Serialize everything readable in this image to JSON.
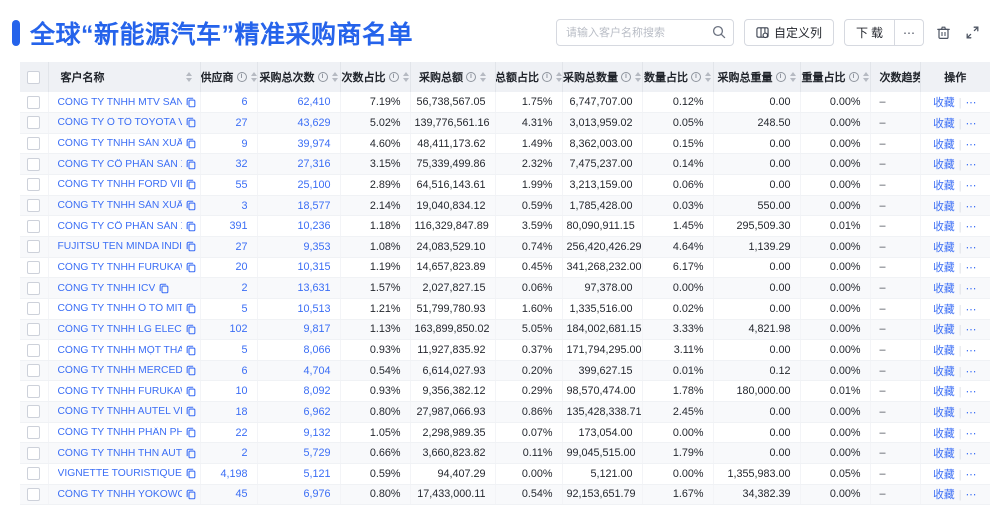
{
  "page": {
    "title": "全球“新能源汽车”精准采购商名单"
  },
  "colors": {
    "accent": "#2563eb",
    "link": "#3b6ef5",
    "header_bg": "#eff1f5"
  },
  "toolbar": {
    "search_placeholder": "请输入客户名称搜索",
    "customize_columns_label": "自定义列",
    "download_label": "下载",
    "download_more_label": "⋯",
    "icons": [
      "search-icon",
      "columns-settings-icon",
      "trash-icon",
      "expand-icon"
    ]
  },
  "table": {
    "columns": [
      {
        "key": "checkbox",
        "label": ""
      },
      {
        "key": "name",
        "label": "客户名称",
        "info": false,
        "sort": true
      },
      {
        "key": "supplier",
        "label": "供应商",
        "info": true,
        "sort": true
      },
      {
        "key": "count",
        "label": "采购总次数",
        "info": true,
        "sort": true
      },
      {
        "key": "count_pct",
        "label": "次数占比",
        "info": true,
        "sort": true
      },
      {
        "key": "amount",
        "label": "采购总额",
        "info": true,
        "sort": true
      },
      {
        "key": "amount_pct",
        "label": "总额占比",
        "info": true,
        "sort": true
      },
      {
        "key": "qty",
        "label": "采购总数量",
        "info": true,
        "sort": true
      },
      {
        "key": "qty_pct",
        "label": "数量占比",
        "info": true,
        "sort": true
      },
      {
        "key": "weight",
        "label": "采购总重量",
        "info": true,
        "sort": true
      },
      {
        "key": "weight_pct",
        "label": "重量占比",
        "info": true,
        "sort": true
      },
      {
        "key": "trend",
        "label": "次数趋势",
        "info": true,
        "sort": true
      },
      {
        "key": "actions",
        "label": "操作"
      }
    ],
    "actions": {
      "favorite": "收藏",
      "divider": "|",
      "more": "⋯"
    },
    "rows": [
      {
        "name": "CÔNG TY TNHH MTV SẢN XUẤ...",
        "supplier": "6",
        "count": "62,410",
        "count_pct": "7.19%",
        "amount": "56,738,567.05",
        "amount_pct": "1.75%",
        "qty": "6,747,707.00",
        "qty_pct": "0.12%",
        "weight": "0.00",
        "weight_pct": "0.00%",
        "trend": "–"
      },
      {
        "name": "CÔNG TY Ô TÔ TOYOTA VIỆT ...",
        "supplier": "27",
        "count": "43,629",
        "count_pct": "5.02%",
        "amount": "139,776,561.16",
        "amount_pct": "4.31%",
        "qty": "3,013,959.02",
        "qty_pct": "0.05%",
        "weight": "248.50",
        "weight_pct": "0.00%",
        "trend": "–"
      },
      {
        "name": "CÔNG TY TNHH SẢN XUẤT VÀ ...",
        "supplier": "9",
        "count": "39,974",
        "count_pct": "4.60%",
        "amount": "48,411,173.62",
        "amount_pct": "1.49%",
        "qty": "8,362,003.00",
        "qty_pct": "0.15%",
        "weight": "0.00",
        "weight_pct": "0.00%",
        "trend": "–"
      },
      {
        "name": "CÔNG TY CỔ PHẦN SẢN XUẤT...",
        "supplier": "32",
        "count": "27,316",
        "count_pct": "3.15%",
        "amount": "75,339,499.86",
        "amount_pct": "2.32%",
        "qty": "7,475,237.00",
        "qty_pct": "0.14%",
        "weight": "0.00",
        "weight_pct": "0.00%",
        "trend": "–"
      },
      {
        "name": "CÔNG TY TNHH FORD VIỆT NAM",
        "supplier": "55",
        "count": "25,100",
        "count_pct": "2.89%",
        "amount": "64,516,143.61",
        "amount_pct": "1.99%",
        "qty": "3,213,159.00",
        "qty_pct": "0.06%",
        "weight": "0.00",
        "weight_pct": "0.00%",
        "trend": "–"
      },
      {
        "name": "CÔNG TY TNHH SẢN XUẤT VÀ ...",
        "supplier": "3",
        "count": "18,577",
        "count_pct": "2.14%",
        "amount": "19,040,834.12",
        "amount_pct": "0.59%",
        "qty": "1,785,428.00",
        "qty_pct": "0.03%",
        "weight": "550.00",
        "weight_pct": "0.00%",
        "trend": "–"
      },
      {
        "name": "CÔNG TY CỔ PHẦN SẢN XUẤT...",
        "supplier": "391",
        "count": "10,236",
        "count_pct": "1.18%",
        "amount": "116,329,847.89",
        "amount_pct": "3.59%",
        "qty": "80,090,911.15",
        "qty_pct": "1.45%",
        "weight": "295,509.30",
        "weight_pct": "0.01%",
        "trend": "–"
      },
      {
        "name": "FUJITSU TEN MINDA INDIA PVT...",
        "supplier": "27",
        "count": "9,353",
        "count_pct": "1.08%",
        "amount": "24,083,529.10",
        "amount_pct": "0.74%",
        "qty": "256,420,426.29",
        "qty_pct": "4.64%",
        "weight": "1,139.29",
        "weight_pct": "0.00%",
        "trend": "–"
      },
      {
        "name": "CÔNG TY TNHH FURUKAWA A...",
        "supplier": "20",
        "count": "10,315",
        "count_pct": "1.19%",
        "amount": "14,657,823.89",
        "amount_pct": "0.45%",
        "qty": "341,268,232.00",
        "qty_pct": "6.17%",
        "weight": "0.00",
        "weight_pct": "0.00%",
        "trend": "–"
      },
      {
        "name": "CÔNG TY TNHH ICV",
        "supplier": "2",
        "count": "13,631",
        "count_pct": "1.57%",
        "amount": "2,027,827.15",
        "amount_pct": "0.06%",
        "qty": "97,378.00",
        "qty_pct": "0.00%",
        "weight": "0.00",
        "weight_pct": "0.00%",
        "trend": "–"
      },
      {
        "name": "CÔNG TY TNHH Ô TÔ MITSUBI...",
        "supplier": "5",
        "count": "10,513",
        "count_pct": "1.21%",
        "amount": "51,799,780.93",
        "amount_pct": "1.60%",
        "qty": "1,335,516.00",
        "qty_pct": "0.02%",
        "weight": "0.00",
        "weight_pct": "0.00%",
        "trend": "–"
      },
      {
        "name": "CÔNG TY TNHH LG ELECTRON...",
        "supplier": "102",
        "count": "9,817",
        "count_pct": "1.13%",
        "amount": "163,899,850.02",
        "amount_pct": "5.05%",
        "qty": "184,002,681.15",
        "qty_pct": "3.33%",
        "weight": "4,821.98",
        "weight_pct": "0.00%",
        "trend": "–"
      },
      {
        "name": "CÔNG TY TNHH MỘT THÀNH V...",
        "supplier": "5",
        "count": "8,066",
        "count_pct": "0.93%",
        "amount": "11,927,835.92",
        "amount_pct": "0.37%",
        "qty": "171,794,295.00",
        "qty_pct": "3.11%",
        "weight": "0.00",
        "weight_pct": "0.00%",
        "trend": "–"
      },
      {
        "name": "CÔNG TY TNHH MERCEDES-B...",
        "supplier": "6",
        "count": "4,704",
        "count_pct": "0.54%",
        "amount": "6,614,027.93",
        "amount_pct": "0.20%",
        "qty": "399,627.15",
        "qty_pct": "0.01%",
        "weight": "0.12",
        "weight_pct": "0.00%",
        "trend": "–"
      },
      {
        "name": "CÔNG TY TNHH FURUKAWA A...",
        "supplier": "10",
        "count": "8,092",
        "count_pct": "0.93%",
        "amount": "9,356,382.12",
        "amount_pct": "0.29%",
        "qty": "98,570,474.00",
        "qty_pct": "1.78%",
        "weight": "180,000.00",
        "weight_pct": "0.01%",
        "trend": "–"
      },
      {
        "name": "CÔNG TY TNHH AUTEL VIỆT N...",
        "supplier": "18",
        "count": "6,962",
        "count_pct": "0.80%",
        "amount": "27,987,066.93",
        "amount_pct": "0.86%",
        "qty": "135,428,338.71",
        "qty_pct": "2.45%",
        "weight": "0.00",
        "weight_pct": "0.00%",
        "trend": "–"
      },
      {
        "name": "CÔNG TY TNHH PHÂN PHỐI T...",
        "supplier": "22",
        "count": "9,132",
        "count_pct": "1.05%",
        "amount": "2,298,989.35",
        "amount_pct": "0.07%",
        "qty": "173,054.00",
        "qty_pct": "0.00%",
        "weight": "0.00",
        "weight_pct": "0.00%",
        "trend": "–"
      },
      {
        "name": "CÔNG TY TNHH THN AUTOPAR...",
        "supplier": "2",
        "count": "5,729",
        "count_pct": "0.66%",
        "amount": "3,660,823.82",
        "amount_pct": "0.11%",
        "qty": "99,045,515.00",
        "qty_pct": "1.79%",
        "weight": "0.00",
        "weight_pct": "0.00%",
        "trend": "–"
      },
      {
        "name": "VIGNETTE TOURISTIQUE G UNI...",
        "supplier": "4,198",
        "count": "5,121",
        "count_pct": "0.59%",
        "amount": "94,407.29",
        "amount_pct": "0.00%",
        "qty": "5,121.00",
        "qty_pct": "0.00%",
        "weight": "1,355,983.00",
        "weight_pct": "0.05%",
        "trend": "–"
      },
      {
        "name": "CÔNG TY TNHH YOKOWO VIỆT...",
        "supplier": "45",
        "count": "6,976",
        "count_pct": "0.80%",
        "amount": "17,433,000.11",
        "amount_pct": "0.54%",
        "qty": "92,153,651.79",
        "qty_pct": "1.67%",
        "weight": "34,382.39",
        "weight_pct": "0.00%",
        "trend": "–"
      }
    ]
  }
}
